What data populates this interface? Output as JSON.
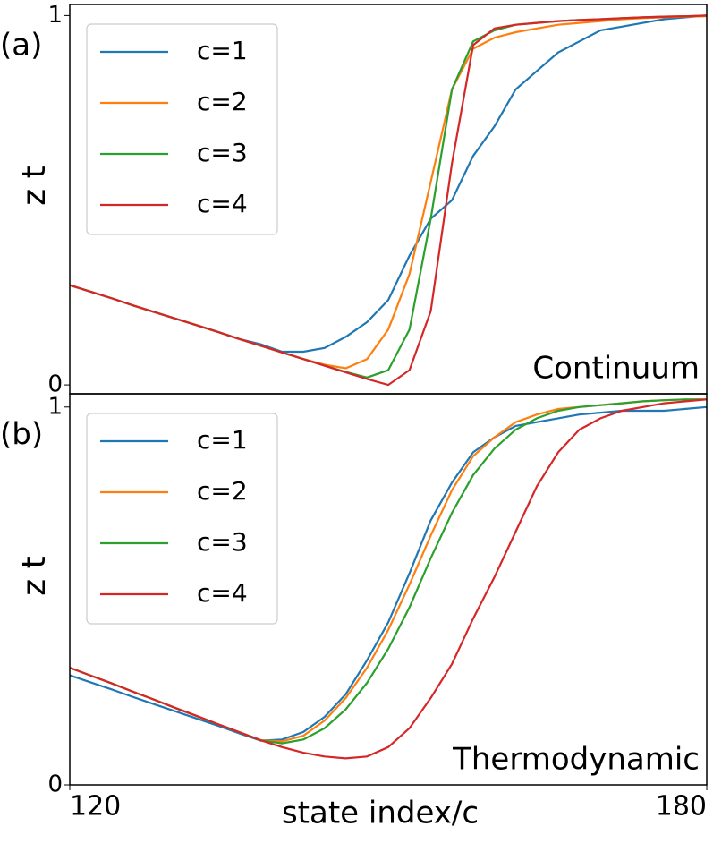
{
  "chart_data": [
    {
      "type": "line",
      "panel_label": "(a)",
      "annotation": "Continuum",
      "ylabel": "z t",
      "x": [
        120,
        122,
        124,
        126,
        128,
        130,
        132,
        134,
        136,
        138,
        140,
        142,
        144,
        146,
        148,
        150,
        152,
        154,
        156,
        158,
        160,
        162,
        164,
        166,
        168,
        170,
        172,
        174,
        176,
        178,
        180
      ],
      "xlim": [
        120,
        180
      ],
      "ylim": [
        -0.024,
        1.03
      ],
      "yticks": [
        0,
        1
      ],
      "legend": "upper left",
      "series": [
        {
          "name": "c=1",
          "color": "#1f77b4",
          "values": [
            0.27,
            0.252,
            0.234,
            0.215,
            0.197,
            0.179,
            0.161,
            0.143,
            0.124,
            0.11,
            0.09,
            0.09,
            0.1,
            0.13,
            0.17,
            0.23,
            0.35,
            0.45,
            0.5,
            0.62,
            0.7,
            0.8,
            0.85,
            0.9,
            0.93,
            0.96,
            0.97,
            0.98,
            0.99,
            0.995,
            1.0
          ]
        },
        {
          "name": "c=2",
          "color": "#ff7f0e",
          "values": [
            0.27,
            0.252,
            0.234,
            0.215,
            0.197,
            0.179,
            0.161,
            0.143,
            0.124,
            0.106,
            0.088,
            0.07,
            0.055,
            0.045,
            0.07,
            0.15,
            0.3,
            0.55,
            0.8,
            0.91,
            0.94,
            0.955,
            0.965,
            0.975,
            0.98,
            0.985,
            0.99,
            0.993,
            0.995,
            0.997,
            0.998
          ]
        },
        {
          "name": "c=3",
          "color": "#2ca02c",
          "values": [
            0.27,
            0.252,
            0.234,
            0.215,
            0.197,
            0.179,
            0.161,
            0.143,
            0.124,
            0.106,
            0.088,
            0.07,
            0.052,
            0.035,
            0.02,
            0.04,
            0.15,
            0.45,
            0.8,
            0.93,
            0.96,
            0.975,
            0.98,
            0.985,
            0.988,
            0.99,
            0.993,
            0.995,
            0.997,
            0.998,
            1.0
          ]
        },
        {
          "name": "c=4",
          "color": "#d62728",
          "values": [
            0.27,
            0.252,
            0.234,
            0.215,
            0.197,
            0.179,
            0.161,
            0.143,
            0.124,
            0.106,
            0.088,
            0.07,
            0.052,
            0.034,
            0.016,
            0.0,
            0.04,
            0.2,
            0.6,
            0.92,
            0.965,
            0.975,
            0.98,
            0.985,
            0.988,
            0.99,
            0.993,
            0.995,
            0.997,
            0.998,
            1.0
          ]
        }
      ]
    },
    {
      "type": "line",
      "panel_label": "(b)",
      "annotation": "Thermodynamic",
      "ylabel": "z t",
      "xlabel": "state index/c",
      "x": [
        120,
        122,
        124,
        126,
        128,
        130,
        132,
        134,
        136,
        138,
        140,
        142,
        144,
        146,
        148,
        150,
        152,
        154,
        156,
        158,
        160,
        162,
        164,
        166,
        168,
        170,
        172,
        174,
        176,
        178,
        180
      ],
      "xlim": [
        120,
        180
      ],
      "xticks": [
        120,
        180
      ],
      "ylim": [
        0,
        1.035
      ],
      "yticks": [
        0,
        1
      ],
      "legend": "upper left",
      "series": [
        {
          "name": "c=1",
          "color": "#1f77b4",
          "values": [
            0.29,
            0.271,
            0.252,
            0.232,
            0.213,
            0.194,
            0.175,
            0.156,
            0.136,
            0.117,
            0.12,
            0.14,
            0.18,
            0.24,
            0.33,
            0.43,
            0.56,
            0.7,
            0.8,
            0.88,
            0.92,
            0.95,
            0.96,
            0.97,
            0.98,
            0.985,
            0.99,
            0.99,
            0.99,
            0.995,
            1.0
          ]
        },
        {
          "name": "c=2",
          "color": "#ff7f0e",
          "values": [
            0.31,
            0.289,
            0.268,
            0.246,
            0.225,
            0.203,
            0.182,
            0.16,
            0.139,
            0.118,
            0.115,
            0.13,
            0.17,
            0.23,
            0.31,
            0.41,
            0.53,
            0.66,
            0.78,
            0.87,
            0.92,
            0.96,
            0.98,
            0.995,
            1.0,
            1.005,
            1.01,
            1.015,
            1.018,
            1.02,
            1.02
          ]
        },
        {
          "name": "c=3",
          "color": "#2ca02c",
          "values": [
            0.31,
            0.289,
            0.268,
            0.246,
            0.225,
            0.203,
            0.182,
            0.16,
            0.139,
            0.118,
            0.11,
            0.12,
            0.15,
            0.2,
            0.27,
            0.36,
            0.47,
            0.6,
            0.72,
            0.82,
            0.89,
            0.94,
            0.97,
            0.99,
            1.0,
            1.005,
            1.01,
            1.015,
            1.018,
            1.02,
            1.02
          ]
        },
        {
          "name": "c=4",
          "color": "#d62728",
          "values": [
            0.31,
            0.289,
            0.268,
            0.246,
            0.225,
            0.203,
            0.182,
            0.16,
            0.139,
            0.118,
            0.1,
            0.085,
            0.075,
            0.07,
            0.075,
            0.1,
            0.15,
            0.23,
            0.32,
            0.44,
            0.55,
            0.67,
            0.79,
            0.88,
            0.94,
            0.97,
            0.99,
            1.0,
            1.01,
            1.015,
            1.02
          ]
        }
      ]
    }
  ]
}
